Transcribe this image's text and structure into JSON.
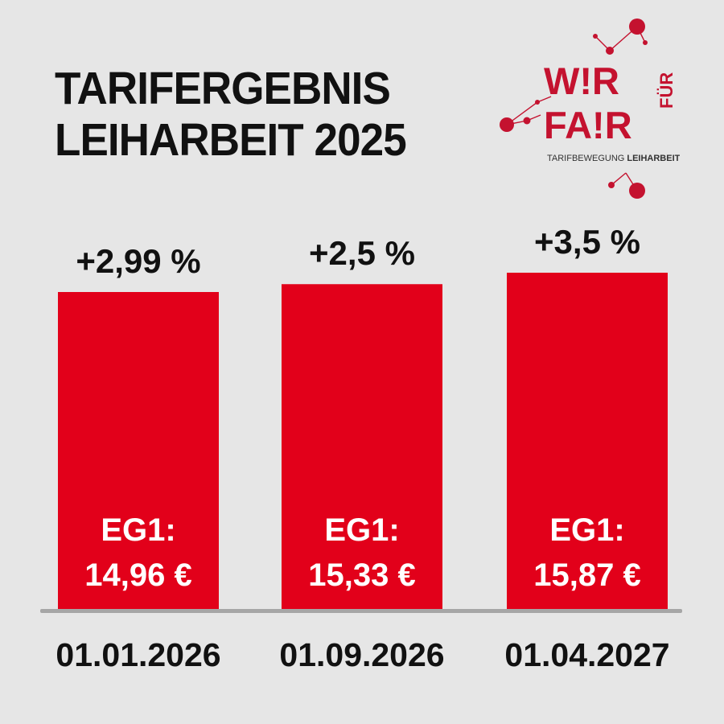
{
  "title": {
    "line1": "TARIFERGEBNIS",
    "line2": "LEIHARBEIT 2025"
  },
  "logo": {
    "line1": "W!R",
    "line2": "FA!R",
    "vertical": "FÜR",
    "tag1": "TARIFBEWEGUNG",
    "tag2": "LEIHARBEIT"
  },
  "colors": {
    "bar": "#e2001a",
    "logo_red": "#c4122f",
    "text": "#111111",
    "background": "#e6e6e6",
    "baseline": "#a6a6a6"
  },
  "chart_data": {
    "type": "bar",
    "categories": [
      "01.01.2026",
      "01.09.2026",
      "01.04.2027"
    ],
    "percent_labels": [
      "+2,99 %",
      "+2,5 %",
      "+3,5 %"
    ],
    "values": [
      14.96,
      15.33,
      15.87
    ],
    "value_label": "EG1:",
    "value_texts": [
      "14,96 €",
      "15,33 €",
      "15,87 €"
    ],
    "grid": false,
    "legend": false
  }
}
